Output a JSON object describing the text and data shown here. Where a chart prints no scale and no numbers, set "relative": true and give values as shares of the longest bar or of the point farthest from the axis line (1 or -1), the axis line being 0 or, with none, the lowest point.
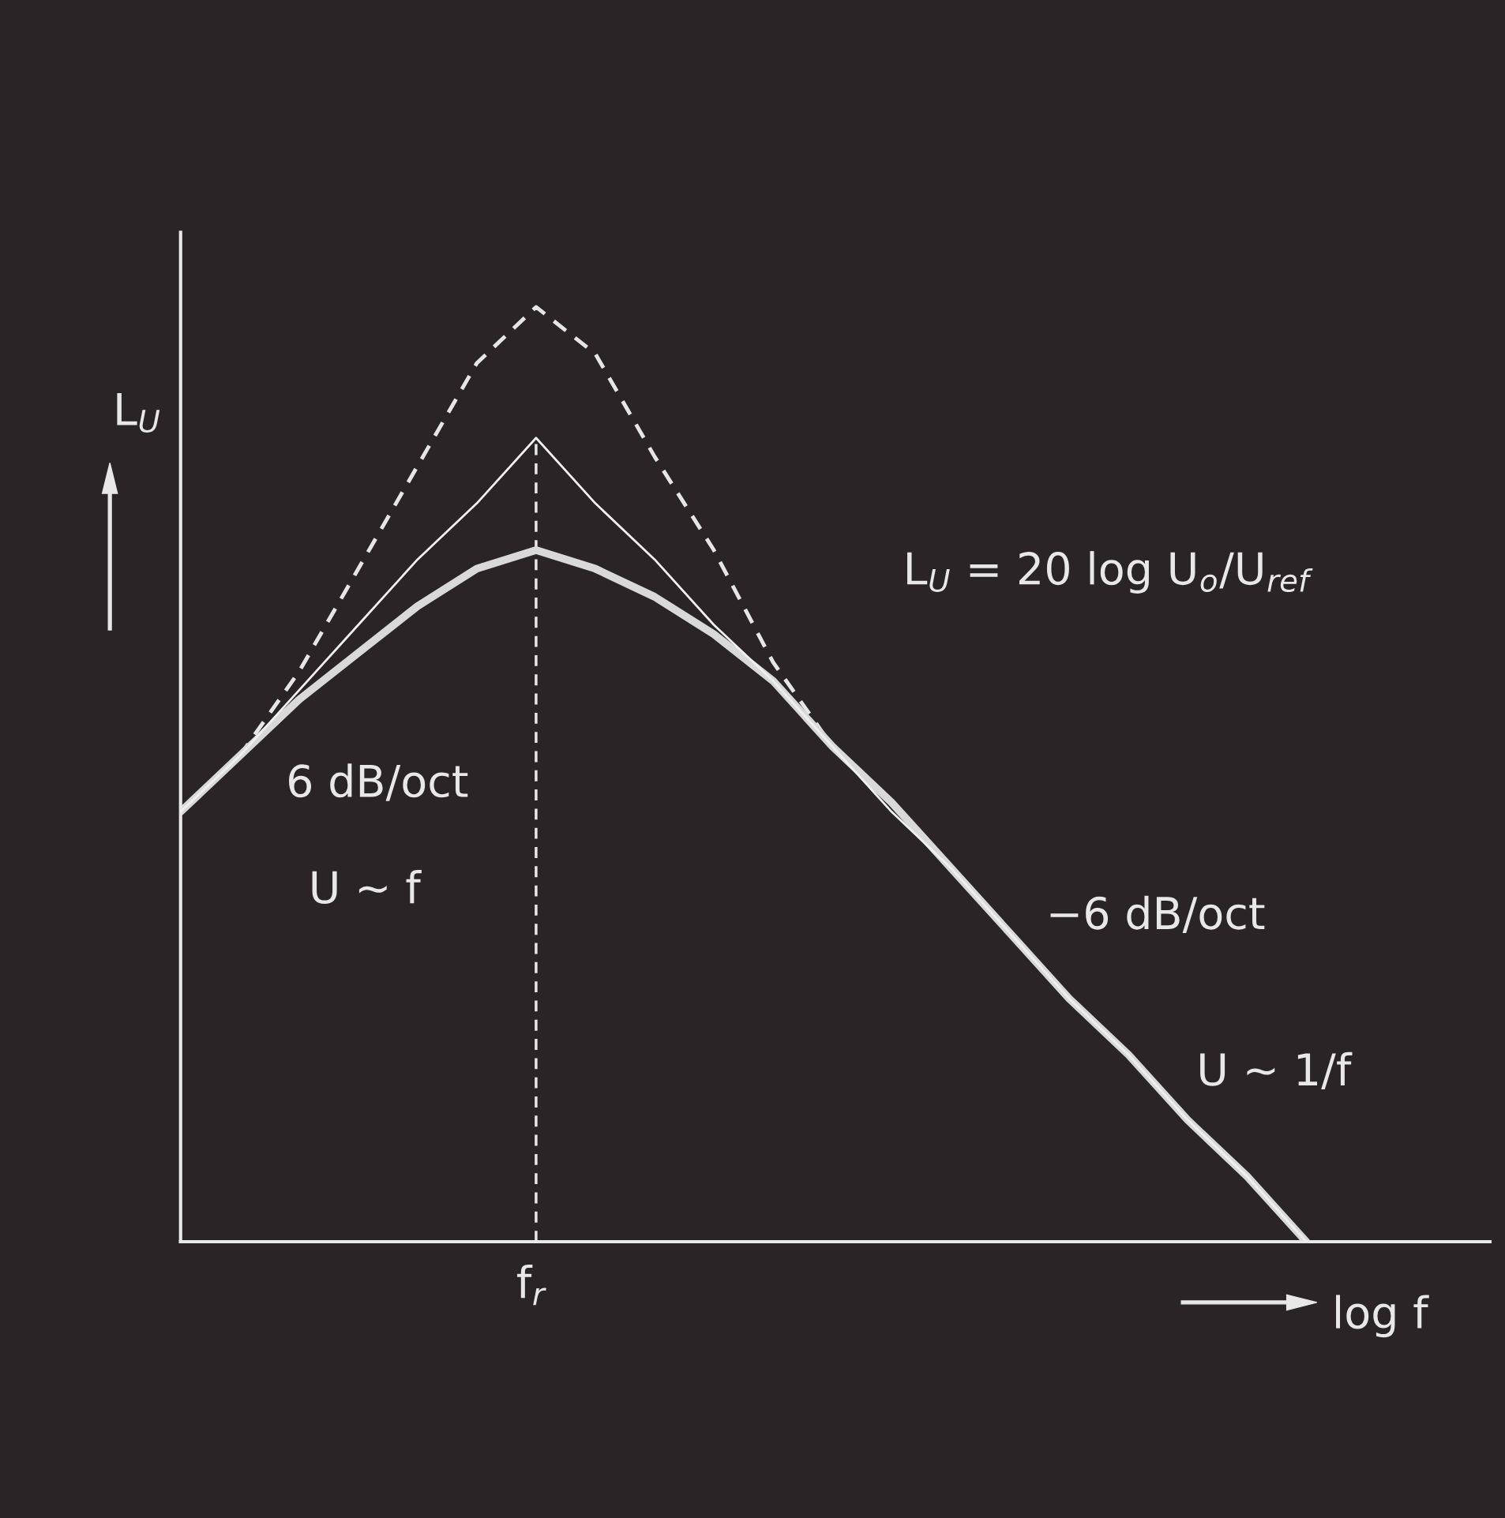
{
  "chart_data": {
    "type": "line",
    "relative": true,
    "categories": [
      null,
      null,
      null,
      null,
      null,
      null,
      null,
      null,
      null,
      null,
      null,
      null,
      null,
      null,
      null,
      null,
      null,
      null,
      null,
      null,
      null,
      null
    ],
    "xlabel": "log f",
    "ylabel": "L$_{U}$",
    "series": [
      {
        "color": "#e6e6e6",
        "line_style": "dashed",
        "values": [
          0.46,
          0.52,
          0.61,
          0.72,
          0.83,
          0.94,
          1.0,
          0.95,
          0.84,
          0.74,
          0.62,
          0.53,
          0.47,
          null,
          null,
          null,
          null,
          null,
          null,
          null,
          null,
          null
        ]
      },
      {
        "color": "#d9d9d9",
        "line_style": "solid",
        "values": [
          0.46,
          0.52,
          0.58,
          0.63,
          0.68,
          0.72,
          0.74,
          0.72,
          0.69,
          0.65,
          0.6,
          0.53,
          0.47,
          0.4,
          0.33,
          0.26,
          0.2,
          0.13,
          0.07,
          0.0,
          null,
          null
        ]
      },
      {
        "color": "#f0f0f0",
        "line_style": "solid",
        "values": [
          0.46,
          0.52,
          0.59,
          0.66,
          0.73,
          0.79,
          0.86,
          0.79,
          0.73,
          0.66,
          0.6,
          0.53,
          0.46,
          0.4,
          0.33,
          0.26,
          0.2,
          0.13,
          0.07,
          0.0,
          null,
          null
        ]
      }
    ],
    "annotations": [
      "f$_{r}$",
      "6 dB/oct",
      "U ~ f",
      "−6 dB/oct",
      "U ~ 1/f",
      "L$_{U}$ = 20 log U$_{o}$/U$_{ref}$"
    ],
    "legend": false
  }
}
